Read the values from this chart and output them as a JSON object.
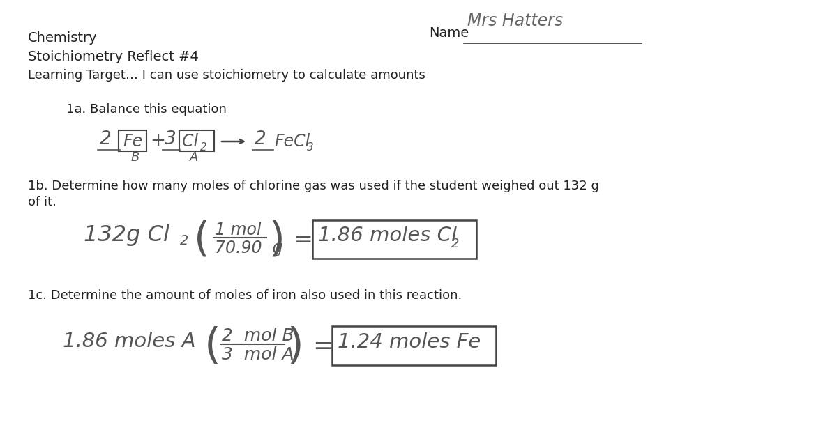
{
  "bg_color": "#ffffff",
  "title_chemistry": "Chemistry",
  "title_stoich": "Stoichiometry Reflect #4",
  "title_learning": "Learning Target… I can use stoichiometry to calculate amounts",
  "name_label": "Name",
  "name_handwritten": "Mrs Hatters",
  "q1a_label": "1a. Balance this equation",
  "q1b_label": "1b. Determine how many moles of chlorine gas was used if the student weighed out 132 g",
  "q1b_label2": "of it.",
  "q1c_label": "1c. Determine the amount of moles of iron also used in this reaction.",
  "figsize": [
    12.0,
    6.3
  ],
  "dpi": 100
}
